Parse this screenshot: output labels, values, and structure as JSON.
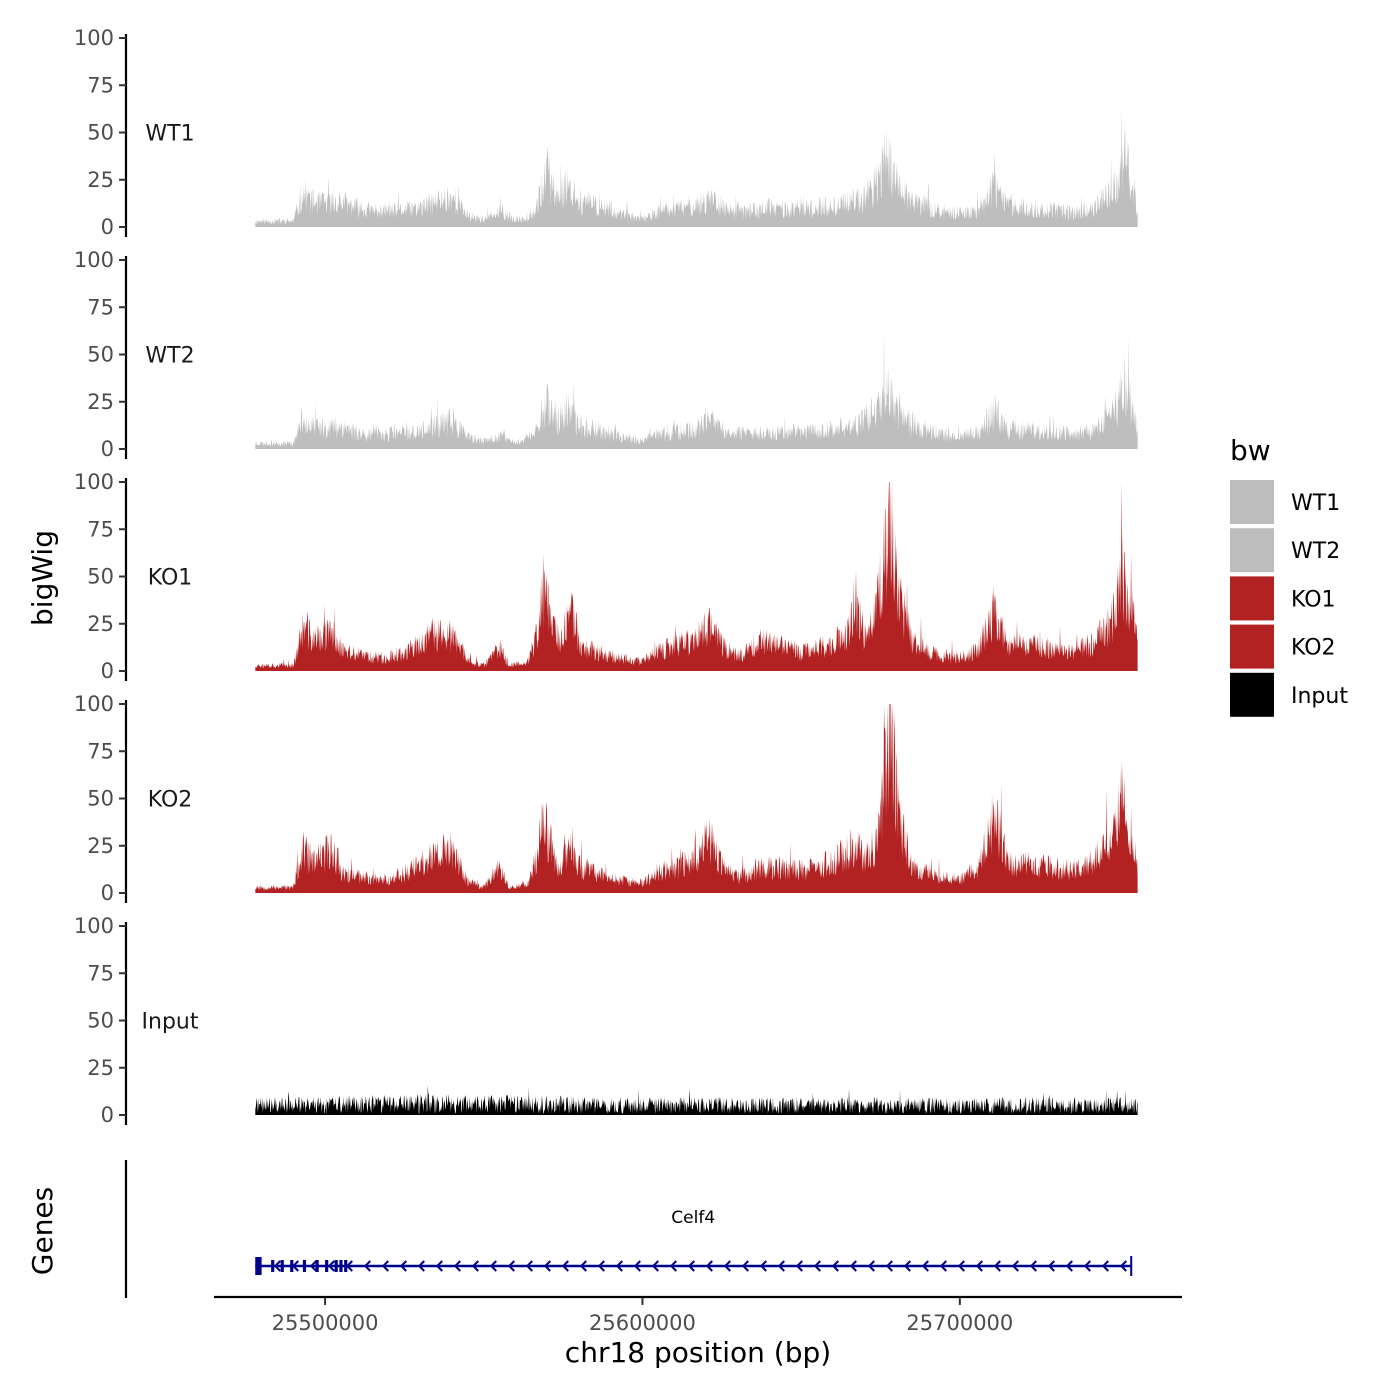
{
  "chart_data": {
    "type": "area",
    "title": "",
    "ylabel": "bigWig",
    "genes_label": "Genes",
    "xlabel": "chr18 position (bp)",
    "chromosome": "chr18",
    "xlim": [
      25465000,
      25770000
    ],
    "data_range": [
      25478000,
      25756000
    ],
    "x_ticks": [
      25500000,
      25600000,
      25700000
    ],
    "x_tick_labels": [
      "25500000",
      "25600000",
      "25700000"
    ],
    "ylim": [
      0,
      100
    ],
    "y_ticks": [
      0,
      25,
      50,
      75,
      100
    ],
    "y_tick_labels": [
      "0",
      "25",
      "50",
      "75",
      "100"
    ],
    "legend": {
      "title": "bw",
      "position": "right",
      "entries": [
        {
          "label": "WT1",
          "color": "#bebebe"
        },
        {
          "label": "WT2",
          "color": "#bebebe"
        },
        {
          "label": "KO1",
          "color": "#b22222"
        },
        {
          "label": "KO2",
          "color": "#b22222"
        },
        {
          "label": "Input",
          "color": "#000000"
        }
      ]
    },
    "series": [
      {
        "name": "WT1",
        "color": "#bebebe",
        "seed": 11,
        "noise": 0.55,
        "profile": [
          [
            25478000,
            3
          ],
          [
            25490000,
            3
          ],
          [
            25493000,
            18
          ],
          [
            25497000,
            12
          ],
          [
            25505000,
            13
          ],
          [
            25512000,
            9
          ],
          [
            25520000,
            8
          ],
          [
            25530000,
            10
          ],
          [
            25540000,
            16
          ],
          [
            25545000,
            6
          ],
          [
            25550000,
            4
          ],
          [
            25556000,
            8
          ],
          [
            25560000,
            3
          ],
          [
            25566000,
            8
          ],
          [
            25570000,
            28
          ],
          [
            25573000,
            16
          ],
          [
            25576000,
            22
          ],
          [
            25580000,
            14
          ],
          [
            25590000,
            9
          ],
          [
            25595000,
            6
          ],
          [
            25600000,
            4
          ],
          [
            25605000,
            8
          ],
          [
            25612000,
            10
          ],
          [
            25618000,
            12
          ],
          [
            25622000,
            16
          ],
          [
            25626000,
            9
          ],
          [
            25632000,
            8
          ],
          [
            25640000,
            10
          ],
          [
            25650000,
            9
          ],
          [
            25660000,
            11
          ],
          [
            25668000,
            14
          ],
          [
            25673000,
            20
          ],
          [
            25677000,
            38
          ],
          [
            25680000,
            24
          ],
          [
            25685000,
            14
          ],
          [
            25692000,
            9
          ],
          [
            25700000,
            7
          ],
          [
            25706000,
            9
          ],
          [
            25711000,
            21
          ],
          [
            25715000,
            12
          ],
          [
            25725000,
            9
          ],
          [
            25735000,
            8
          ],
          [
            25742000,
            9
          ],
          [
            25748000,
            18
          ],
          [
            25752000,
            36
          ],
          [
            25755000,
            17
          ],
          [
            25756000,
            10
          ]
        ]
      },
      {
        "name": "WT2",
        "color": "#bebebe",
        "seed": 23,
        "noise": 0.55,
        "profile": [
          [
            25478000,
            3
          ],
          [
            25490000,
            3
          ],
          [
            25493000,
            17
          ],
          [
            25497000,
            11
          ],
          [
            25505000,
            12
          ],
          [
            25512000,
            8
          ],
          [
            25520000,
            8
          ],
          [
            25530000,
            9
          ],
          [
            25540000,
            15
          ],
          [
            25545000,
            6
          ],
          [
            25550000,
            4
          ],
          [
            25556000,
            7
          ],
          [
            25560000,
            3
          ],
          [
            25566000,
            8
          ],
          [
            25570000,
            26
          ],
          [
            25573000,
            14
          ],
          [
            25576000,
            20
          ],
          [
            25580000,
            13
          ],
          [
            25590000,
            8
          ],
          [
            25595000,
            6
          ],
          [
            25600000,
            4
          ],
          [
            25605000,
            8
          ],
          [
            25612000,
            9
          ],
          [
            25618000,
            11
          ],
          [
            25622000,
            15
          ],
          [
            25626000,
            8
          ],
          [
            25632000,
            8
          ],
          [
            25640000,
            9
          ],
          [
            25650000,
            9
          ],
          [
            25660000,
            10
          ],
          [
            25668000,
            13
          ],
          [
            25673000,
            19
          ],
          [
            25677000,
            36
          ],
          [
            25680000,
            22
          ],
          [
            25685000,
            13
          ],
          [
            25692000,
            8
          ],
          [
            25700000,
            7
          ],
          [
            25706000,
            9
          ],
          [
            25711000,
            20
          ],
          [
            25715000,
            11
          ],
          [
            25725000,
            9
          ],
          [
            25735000,
            8
          ],
          [
            25742000,
            9
          ],
          [
            25748000,
            17
          ],
          [
            25752000,
            34
          ],
          [
            25755000,
            16
          ],
          [
            25756000,
            10
          ]
        ]
      },
      {
        "name": "KO1",
        "color": "#b22222",
        "seed": 37,
        "noise": 0.5,
        "profile": [
          [
            25478000,
            3
          ],
          [
            25490000,
            3
          ],
          [
            25493000,
            22
          ],
          [
            25497000,
            16
          ],
          [
            25502000,
            20
          ],
          [
            25506000,
            10
          ],
          [
            25512000,
            8
          ],
          [
            25520000,
            7
          ],
          [
            25528000,
            12
          ],
          [
            25535000,
            20
          ],
          [
            25540000,
            18
          ],
          [
            25545000,
            6
          ],
          [
            25550000,
            3
          ],
          [
            25555000,
            12
          ],
          [
            25558000,
            3
          ],
          [
            25564000,
            5
          ],
          [
            25567000,
            20
          ],
          [
            25569000,
            44
          ],
          [
            25571000,
            30
          ],
          [
            25574000,
            14
          ],
          [
            25578000,
            33
          ],
          [
            25580000,
            14
          ],
          [
            25586000,
            10
          ],
          [
            25590000,
            8
          ],
          [
            25595000,
            6
          ],
          [
            25600000,
            5
          ],
          [
            25605000,
            10
          ],
          [
            25612000,
            14
          ],
          [
            25618000,
            18
          ],
          [
            25621000,
            26
          ],
          [
            25625000,
            14
          ],
          [
            25630000,
            8
          ],
          [
            25638000,
            16
          ],
          [
            25645000,
            13
          ],
          [
            25650000,
            10
          ],
          [
            25660000,
            14
          ],
          [
            25665000,
            20
          ],
          [
            25667000,
            38
          ],
          [
            25670000,
            17
          ],
          [
            25673000,
            25
          ],
          [
            25676000,
            55
          ],
          [
            25678000,
            84
          ],
          [
            25681000,
            38
          ],
          [
            25685000,
            16
          ],
          [
            25692000,
            9
          ],
          [
            25700000,
            7
          ],
          [
            25706000,
            12
          ],
          [
            25711000,
            33
          ],
          [
            25715000,
            14
          ],
          [
            25725000,
            13
          ],
          [
            25735000,
            10
          ],
          [
            25742000,
            14
          ],
          [
            25748000,
            27
          ],
          [
            25751000,
            52
          ],
          [
            25754000,
            33
          ],
          [
            25756000,
            14
          ]
        ]
      },
      {
        "name": "KO2",
        "color": "#b22222",
        "seed": 53,
        "noise": 0.5,
        "profile": [
          [
            25478000,
            3
          ],
          [
            25490000,
            3
          ],
          [
            25493000,
            22
          ],
          [
            25497000,
            16
          ],
          [
            25502000,
            24
          ],
          [
            25506000,
            10
          ],
          [
            25512000,
            8
          ],
          [
            25520000,
            7
          ],
          [
            25528000,
            13
          ],
          [
            25535000,
            20
          ],
          [
            25540000,
            22
          ],
          [
            25545000,
            6
          ],
          [
            25550000,
            3
          ],
          [
            25555000,
            14
          ],
          [
            25558000,
            3
          ],
          [
            25564000,
            5
          ],
          [
            25567000,
            22
          ],
          [
            25569000,
            38
          ],
          [
            25571000,
            25
          ],
          [
            25574000,
            14
          ],
          [
            25578000,
            24
          ],
          [
            25580000,
            14
          ],
          [
            25586000,
            10
          ],
          [
            25590000,
            8
          ],
          [
            25595000,
            6
          ],
          [
            25600000,
            5
          ],
          [
            25605000,
            11
          ],
          [
            25612000,
            14
          ],
          [
            25618000,
            20
          ],
          [
            25621000,
            30
          ],
          [
            25625000,
            14
          ],
          [
            25630000,
            8
          ],
          [
            25638000,
            14
          ],
          [
            25645000,
            13
          ],
          [
            25650000,
            12
          ],
          [
            25660000,
            16
          ],
          [
            25665000,
            22
          ],
          [
            25667000,
            26
          ],
          [
            25670000,
            16
          ],
          [
            25673000,
            24
          ],
          [
            25676000,
            55
          ],
          [
            25678000,
            84
          ],
          [
            25681000,
            38
          ],
          [
            25685000,
            14
          ],
          [
            25692000,
            9
          ],
          [
            25700000,
            7
          ],
          [
            25706000,
            14
          ],
          [
            25711000,
            40
          ],
          [
            25715000,
            16
          ],
          [
            25725000,
            14
          ],
          [
            25735000,
            12
          ],
          [
            25742000,
            16
          ],
          [
            25748000,
            30
          ],
          [
            25751000,
            48
          ],
          [
            25754000,
            30
          ],
          [
            25756000,
            14
          ]
        ]
      },
      {
        "name": "Input",
        "color": "#000000",
        "seed": 71,
        "noise": 0.9,
        "profile": [
          [
            25478000,
            5
          ],
          [
            25540000,
            6
          ],
          [
            25600000,
            5
          ],
          [
            25680000,
            5
          ],
          [
            25756000,
            5
          ]
        ]
      }
    ],
    "genes": [
      {
        "name": "Celf4",
        "start": 25478000,
        "end": 25754000,
        "strand": "-",
        "color": "#00008b",
        "exons": [
          [
            25478000,
            25480000
          ],
          [
            25483000,
            25484000
          ],
          [
            25486000,
            25487000
          ],
          [
            25489000,
            25490000
          ],
          [
            25493000,
            25494000
          ],
          [
            25497000,
            25498000
          ],
          [
            25500000,
            25501000
          ],
          [
            25503000,
            25504000
          ],
          [
            25504500,
            25505500
          ],
          [
            25506000,
            25507000
          ]
        ]
      }
    ]
  }
}
